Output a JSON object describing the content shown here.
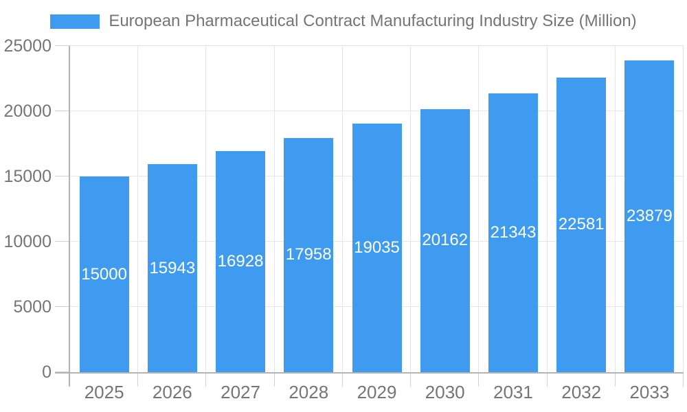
{
  "chart_data": {
    "type": "bar",
    "title": "European Pharmaceutical Contract Manufacturing Industry Size (Million)",
    "categories": [
      "2025",
      "2026",
      "2027",
      "2028",
      "2029",
      "2030",
      "2031",
      "2032",
      "2033"
    ],
    "values": [
      15000,
      15943,
      16928,
      17958,
      19035,
      20162,
      21343,
      22581,
      23879
    ],
    "series": [
      {
        "name": "European Pharmaceutical Contract Manufacturing Industry Size (Million)",
        "values": [
          15000,
          15943,
          16928,
          17958,
          19035,
          20162,
          21343,
          22581,
          23879
        ]
      }
    ],
    "xlabel": "",
    "ylabel": "",
    "ylim": [
      0,
      25000
    ],
    "yticks": [
      0,
      5000,
      10000,
      15000,
      20000,
      25000
    ],
    "grid": true,
    "legend_position": "top-center",
    "value_labels": "inside-center-white",
    "colors": {
      "bar": "#3e9bef",
      "value_label": "#ffffff",
      "text": "#757575",
      "grid": "#e5e5e5",
      "tick": "#d0d0d0",
      "axis": "#b3b3b3",
      "background": "#ffffff"
    }
  }
}
